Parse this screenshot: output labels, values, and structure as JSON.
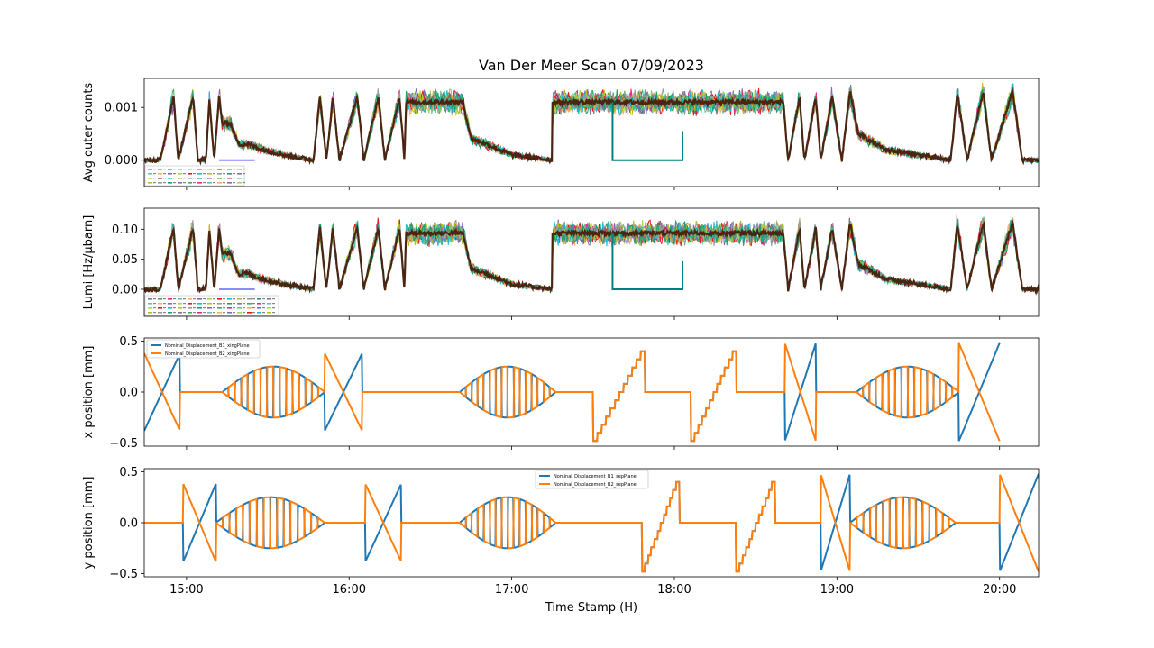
{
  "chart_data": {
    "title": "Van Der Meer Scan 07/09/2023",
    "xlabel": "Time Stamp (H)",
    "x_ticks": [
      "15:00",
      "16:00",
      "17:00",
      "18:00",
      "19:00",
      "20:00"
    ],
    "x_tick_hours": [
      15,
      16,
      17,
      18,
      19,
      20
    ],
    "xlim_hours": [
      14.74,
      20.24
    ],
    "subplots": [
      {
        "type": "line",
        "ylabel": "Avg outer counts",
        "yticks": [
          0.0,
          0.001
        ],
        "ytick_labels": [
          "0.000",
          "0.001"
        ],
        "ylim": [
          -0.0005,
          0.00155
        ],
        "legend": "lower-left (many tiny entries)",
        "envelope_profile": [
          [
            14.74,
            0.0
          ],
          [
            14.84,
            0.0
          ],
          [
            14.92,
            0.0012
          ],
          [
            14.95,
            0.0
          ],
          [
            15.04,
            0.0012
          ],
          [
            15.07,
            0.0
          ],
          [
            15.12,
            0.0
          ],
          [
            15.14,
            0.0012
          ],
          [
            15.17,
            0.0
          ],
          [
            15.2,
            0.0012
          ],
          [
            15.22,
            0.0007
          ],
          [
            15.27,
            0.0007
          ],
          [
            15.32,
            0.0003
          ],
          [
            15.38,
            0.0003
          ],
          [
            15.47,
            0.0002
          ],
          [
            15.6,
            0.0001
          ],
          [
            15.78,
            0.0
          ],
          [
            15.82,
            0.0012
          ],
          [
            15.86,
            0.0
          ],
          [
            15.9,
            0.0012
          ],
          [
            15.94,
            0.0
          ],
          [
            16.05,
            0.0012
          ],
          [
            16.09,
            0.0
          ],
          [
            16.18,
            0.0012
          ],
          [
            16.22,
            0.0
          ],
          [
            16.31,
            0.0012
          ],
          [
            16.34,
            0.0
          ],
          [
            16.35,
            0.0011
          ],
          [
            16.7,
            0.0011
          ],
          [
            16.75,
            0.0004
          ],
          [
            16.85,
            0.0003
          ],
          [
            17.0,
            0.0001
          ],
          [
            17.25,
            0.0
          ],
          [
            17.25,
            0.0011
          ],
          [
            18.67,
            0.0011
          ],
          [
            18.7,
            0.0
          ],
          [
            18.77,
            0.0012
          ],
          [
            18.8,
            0.0
          ],
          [
            18.87,
            0.0012
          ],
          [
            18.9,
            0.0
          ],
          [
            18.97,
            0.0012
          ],
          [
            19.03,
            0.0
          ],
          [
            19.08,
            0.0013
          ],
          [
            19.13,
            0.0005
          ],
          [
            19.3,
            0.0002
          ],
          [
            19.7,
            0.0
          ],
          [
            19.74,
            0.0013
          ],
          [
            19.8,
            0.0
          ],
          [
            19.9,
            0.0013
          ],
          [
            19.95,
            0.0
          ],
          [
            20.08,
            0.0013
          ],
          [
            20.14,
            0.0
          ],
          [
            20.24,
            0.0
          ]
        ],
        "flat_segment": {
          "from_hour": 17.62,
          "to_hour": 18.05,
          "value": 0.0
        }
      },
      {
        "type": "line",
        "ylabel": "Lumi [Hz/μbarn]",
        "yticks": [
          0.0,
          0.05,
          0.1
        ],
        "ytick_labels": [
          "0.00",
          "0.05",
          "0.10"
        ],
        "ylim": [
          -0.045,
          0.135
        ],
        "legend": "lower-left (many tiny entries)",
        "scale_of_first": 85,
        "flat_segment": {
          "from_hour": 17.62,
          "to_hour": 18.05,
          "value": 0.0
        }
      },
      {
        "type": "line",
        "ylabel": "x position [mm]",
        "yticks": [
          -0.5,
          0.0,
          0.5
        ],
        "ytick_labels": [
          "−0.5",
          "0.0",
          "0.5"
        ],
        "ylim": [
          -0.53,
          0.53
        ],
        "legend": "top-left",
        "series": [
          {
            "name": "Nominal_Displacement_B1_xingPlane",
            "color": "#1f77b4"
          },
          {
            "name": "Nominal_Displacement_B2_xingPlane",
            "color": "#ff7f0e"
          }
        ]
      },
      {
        "type": "line",
        "ylabel": "y position [mm]",
        "yticks": [
          -0.5,
          0.0,
          0.5
        ],
        "ytick_labels": [
          "−0.5",
          "0.0",
          "0.5"
        ],
        "ylim": [
          -0.53,
          0.53
        ],
        "legend": "top-center",
        "series": [
          {
            "name": "Nominal_Displacement_B1_sepPlane",
            "color": "#1f77b4"
          },
          {
            "name": "Nominal_Displacement_B2_sepPlane",
            "color": "#ff7f0e"
          }
        ]
      }
    ],
    "scan_segments_x": [
      {
        "kind": "ramp",
        "from": 14.74,
        "to": 14.96,
        "amp": 0.38
      },
      {
        "kind": "flat",
        "from": 14.96,
        "to": 15.22
      },
      {
        "kind": "osc",
        "from": 15.22,
        "to": 15.85,
        "amp": 0.25
      },
      {
        "kind": "ramp",
        "from": 15.85,
        "to": 16.08,
        "amp": 0.38
      },
      {
        "kind": "flat",
        "from": 16.08,
        "to": 16.68
      },
      {
        "kind": "osc",
        "from": 16.68,
        "to": 17.27,
        "amp": 0.25
      },
      {
        "kind": "flat",
        "from": 17.27,
        "to": 17.5
      },
      {
        "kind": "stair",
        "from": 17.5,
        "to": 17.82,
        "amp": 0.48
      },
      {
        "kind": "flat",
        "from": 17.82,
        "to": 18.1
      },
      {
        "kind": "stair",
        "from": 18.1,
        "to": 18.38,
        "amp": 0.48
      },
      {
        "kind": "flat",
        "from": 18.38,
        "to": 18.68
      },
      {
        "kind": "ramp",
        "from": 18.68,
        "to": 18.87,
        "amp": 0.48
      },
      {
        "kind": "flat",
        "from": 18.87,
        "to": 19.12
      },
      {
        "kind": "osc",
        "from": 19.12,
        "to": 19.75,
        "amp": 0.25
      },
      {
        "kind": "ramp",
        "from": 19.75,
        "to": 20.0,
        "amp": 0.48
      }
    ],
    "scan_segments_y": [
      {
        "kind": "flat",
        "from": 14.74,
        "to": 14.98
      },
      {
        "kind": "ramp",
        "from": 14.98,
        "to": 15.18,
        "amp": 0.38
      },
      {
        "kind": "osc",
        "from": 15.18,
        "to": 15.85,
        "amp": 0.25
      },
      {
        "kind": "flat",
        "from": 15.85,
        "to": 16.1
      },
      {
        "kind": "ramp",
        "from": 16.1,
        "to": 16.32,
        "amp": 0.38
      },
      {
        "kind": "flat",
        "from": 16.32,
        "to": 16.68
      },
      {
        "kind": "osc",
        "from": 16.68,
        "to": 17.27,
        "amp": 0.25
      },
      {
        "kind": "flat",
        "from": 17.27,
        "to": 17.8
      },
      {
        "kind": "stair",
        "from": 17.8,
        "to": 18.03,
        "amp": 0.48
      },
      {
        "kind": "flat",
        "from": 18.03,
        "to": 18.38
      },
      {
        "kind": "stair",
        "from": 18.38,
        "to": 18.62,
        "amp": 0.48
      },
      {
        "kind": "flat",
        "from": 18.62,
        "to": 18.9
      },
      {
        "kind": "ramp",
        "from": 18.9,
        "to": 19.08,
        "amp": 0.48
      },
      {
        "kind": "osc",
        "from": 19.08,
        "to": 19.73,
        "amp": 0.25
      },
      {
        "kind": "flat",
        "from": 19.73,
        "to": 20.0
      },
      {
        "kind": "ramp",
        "from": 20.0,
        "to": 20.24,
        "amp": 0.48
      }
    ],
    "noise_colors": [
      "#8c6bb1",
      "#41ab5d",
      "#e7298a",
      "#66c2a5",
      "#fdae61",
      "#7570b3",
      "#a6d854",
      "#e41a1c",
      "#17becf",
      "#bcbd22",
      "#999999",
      "#1b9e77"
    ],
    "foreground_color": "#4a2511"
  }
}
